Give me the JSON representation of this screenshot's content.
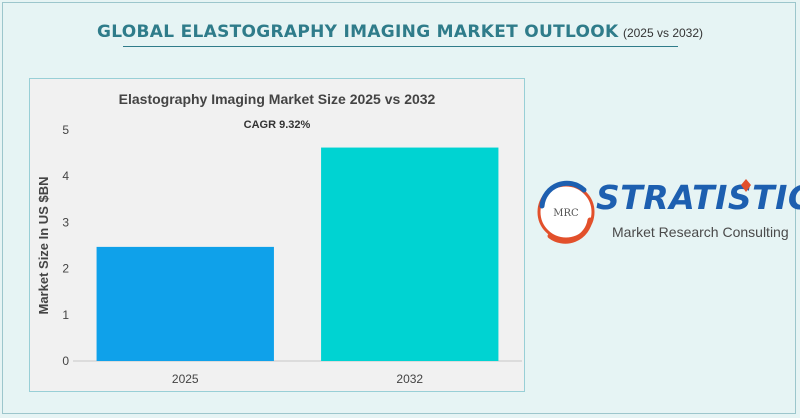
{
  "header": {
    "title_main": "GLOBAL ELASTOGRAPHY IMAGING MARKET OUTLOOK",
    "title_sub": "(2025 vs 2032)"
  },
  "chart_data": {
    "type": "bar",
    "title": "Elastography Imaging Market Size 2025 vs 2032",
    "subtitle": "CAGR 9.32%",
    "ylabel": "Market Size In US $BN",
    "xlabel": "",
    "categories": [
      "2025",
      "2032"
    ],
    "values": [
      2.47,
      4.62
    ],
    "colors": [
      "#0fa1ea",
      "#00d3d2"
    ],
    "ylim": [
      0,
      5
    ],
    "yticks": [
      0,
      1,
      2,
      3,
      4,
      5
    ],
    "grid": false
  },
  "logo": {
    "name": "STRATISTICS",
    "tagline": "Market Research Consulting",
    "emblem_text": "MRC"
  }
}
